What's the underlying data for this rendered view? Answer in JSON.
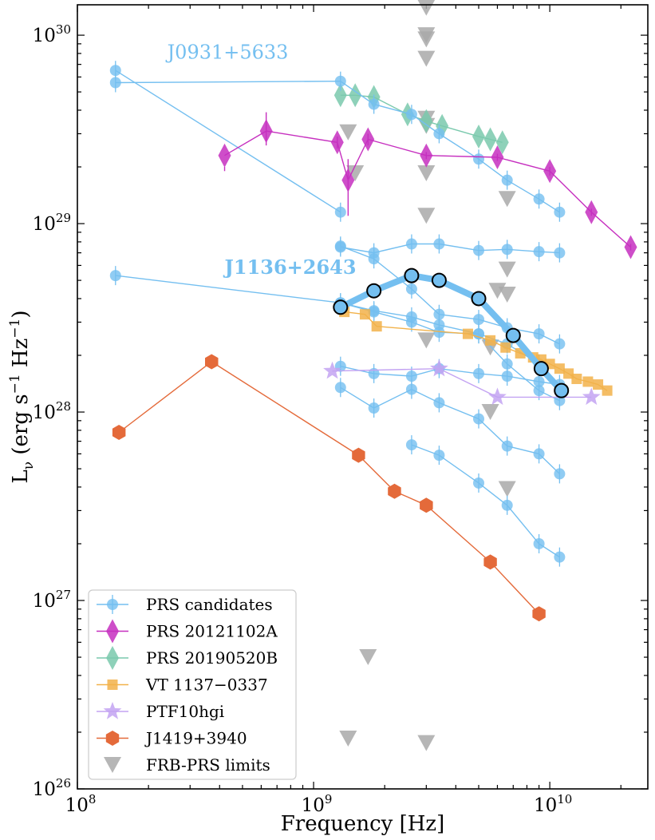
{
  "chart_data": {
    "type": "scatter",
    "xlabel": "Frequency [Hz]",
    "ylabel": "L",
    "ylabel_sub": "ν",
    "ylabel_units": "(erg s",
    "ylabel_units_exp": "−1",
    "ylabel_units_hz": " Hz",
    "ylabel_units_close": ")",
    "xscale": "log",
    "yscale": "log",
    "xlim": [
      100000000.0,
      26000000000.0
    ],
    "ylim": [
      1e+26,
      1.45e+30
    ],
    "x_tick_labels": [
      {
        "base": "10",
        "exp": "8"
      },
      {
        "base": "10",
        "exp": "9"
      },
      {
        "base": "10",
        "exp": "10"
      }
    ],
    "y_tick_labels": [
      {
        "base": "10",
        "exp": "26"
      },
      {
        "base": "10",
        "exp": "27"
      },
      {
        "base": "10",
        "exp": "28"
      },
      {
        "base": "10",
        "exp": "29"
      },
      {
        "base": "10",
        "exp": "30"
      }
    ],
    "legend_position": "lower-left",
    "annotations": [
      {
        "text": "J0931+5633",
        "x": 240000000.0,
        "y": 7.5e+29,
        "bold": false
      },
      {
        "text": "J1136+2643",
        "x": 420000000.0,
        "y": 5.4e+28,
        "bold": true
      }
    ],
    "series": [
      {
        "name": "PRS candidates",
        "color": "#74bff0",
        "marker": "circle",
        "lines": [
          {
            "x": [
              145000000.0,
              1300000000.0
            ],
            "y": [
              6.5e+29,
              1.15e+29
            ]
          },
          {
            "x": [
              145000000.0,
              1300000000.0,
              1800000000.0,
              2600000000.0,
              3400000000.0,
              5000000000.0,
              6600000000.0,
              9000000000.0,
              11000000000.0
            ],
            "y": [
              5.6e+29,
              5.7e+29,
              4.3e+29,
              3.8e+29,
              3e+29,
              2.2e+29,
              1.7e+29,
              1.35e+29,
              1.15e+29
            ]
          },
          {
            "x": [
              1300000000.0,
              1800000000.0,
              2600000000.0,
              3400000000.0,
              5000000000.0,
              6600000000.0,
              9000000000.0,
              11000000000.0
            ],
            "y": [
              7.5e+28,
              7e+28,
              7.8e+28,
              7.8e+28,
              7.2e+28,
              7.3e+28,
              7.1e+28,
              7e+28
            ]
          },
          {
            "x": [
              145000000.0,
              1300000000.0,
              1800000000.0,
              2600000000.0,
              3400000000.0,
              5000000000.0,
              6600000000.0,
              9000000000.0
            ],
            "y": [
              5.3e+28,
              3.8e+28,
              3.45e+28,
              3.2e+28,
              2.9e+28,
              2.6e+28,
              2.3e+28,
              1.8e+28
            ]
          },
          {
            "x": [
              1300000000.0,
              1800000000.0,
              2600000000.0,
              3400000000.0,
              5000000000.0,
              6600000000.0,
              9000000000.0,
              11000000000.0
            ],
            "y": [
              7.6e+28,
              6.5e+28,
              4.5e+28,
              3.3e+28,
              3.1e+28,
              2.8e+28,
              2.6e+28,
              2.3e+28
            ]
          },
          {
            "x": [
              1300000000.0,
              1800000000.0,
              2600000000.0,
              3400000000.0,
              5000000000.0,
              6600000000.0,
              9000000000.0,
              11000000000.0
            ],
            "y": [
              3.8e+28,
              3.4e+28,
              3e+28,
              2.65e+28,
              2.6e+28,
              1.8e+28,
              1.3e+28,
              1.15e+28
            ]
          },
          {
            "x": [
              1300000000.0,
              1800000000.0,
              2600000000.0,
              3400000000.0,
              5000000000.0,
              6600000000.0,
              9000000000.0,
              11000000000.0
            ],
            "y": [
              1.75e+28,
              1.6e+28,
              1.55e+28,
              1.7e+28,
              1.6e+28,
              1.55e+28,
              1.45e+28,
              1.4e+28
            ]
          },
          {
            "x": [
              1300000000.0,
              1800000000.0,
              2600000000.0,
              3400000000.0,
              5000000000.0,
              6600000000.0,
              9000000000.0,
              11000000000.0
            ],
            "y": [
              1.35e+28,
              1.05e+28,
              1.32e+28,
              1.12e+28,
              9.2e+27,
              6.6e+27,
              6e+27,
              4.7e+27
            ]
          },
          {
            "x": [
              2600000000.0,
              3400000000.0,
              5000000000.0,
              6600000000.0,
              9000000000.0,
              11000000000.0
            ],
            "y": [
              6.7e+27,
              5.9e+27,
              4.2e+27,
              3.2e+27,
              2e+27,
              1.7e+27
            ]
          }
        ]
      },
      {
        "name": "J1136+2643",
        "color": "#74bff0",
        "marker": "open-circle",
        "thick": true,
        "x": [
          1300000000.0,
          1800000000.0,
          2600000000.0,
          3400000000.0,
          5000000000.0,
          7000000000.0,
          9200000000.0,
          11200000000.0
        ],
        "y": [
          3.6e+28,
          4.4e+28,
          5.3e+28,
          5e+28,
          4e+28,
          2.55e+28,
          1.7e+28,
          1.3e+28
        ]
      },
      {
        "name": "PRS 20121102A",
        "color": "#c62fbf",
        "marker": "diamond",
        "x": [
          420000000.0,
          630000000.0,
          1260000000.0,
          1400000000.0,
          1700000000.0,
          3000000000.0,
          6000000000.0,
          10000000000.0,
          15000000000.0,
          22000000000.0
        ],
        "y": [
          2.3e+29,
          3.1e+29,
          2.7e+29,
          1.7e+29,
          2.8e+29,
          2.3e+29,
          2.25e+29,
          1.9e+29,
          1.15e+29,
          7.5e+28
        ],
        "yerr_hi": [
          2e+29,
          3.9e+29,
          2.9e+29,
          2.2e+29,
          3e+29,
          2.4e+29,
          2.35e+29,
          2e+29,
          1.2e+29,
          7.8e+28
        ],
        "yerr_lo": [
          1.9e+29,
          2.6e+29,
          2.5e+29,
          1.1e+29,
          2.6e+29,
          2.2e+29,
          2.15e+29,
          1.8e+29,
          1.1e+29,
          7.2e+28
        ]
      },
      {
        "name": "PRS 20190520B",
        "color": "#7ac9ad",
        "marker": "diamond",
        "x": [
          1300000000.0,
          1500000000.0,
          1800000000.0,
          2500000000.0,
          3000000000.0,
          3500000000.0,
          5000000000.0,
          5600000000.0,
          6300000000.0
        ],
        "y": [
          4.8e+29,
          4.8e+29,
          4.7e+29,
          3.8e+29,
          3.5e+29,
          3.3e+29,
          2.9e+29,
          2.8e+29,
          2.7e+29
        ]
      },
      {
        "name": "VT 1137−0337",
        "color": "#f2b24a",
        "marker": "square",
        "x": [
          1350000000.0,
          1650000000.0,
          1850000000.0,
          4500000000.0,
          5600000000.0,
          6500000000.0,
          7500000000.0,
          8500000000.0,
          9200000000.0,
          10000000000.0,
          11000000000.0,
          12000000000.0,
          13000000000.0,
          14500000000.0,
          16000000000.0,
          17500000000.0
        ],
        "y": [
          3.4e+28,
          3.3e+28,
          2.85e+28,
          2.6e+28,
          2.4e+28,
          2.2e+28,
          2.05e+28,
          1.95e+28,
          1.9e+28,
          1.8e+28,
          1.7e+28,
          1.6e+28,
          1.5e+28,
          1.45e+28,
          1.4e+28,
          1.3e+28
        ]
      },
      {
        "name": "PTF10hgi",
        "color": "#c3a3f2",
        "marker": "star",
        "x": [
          1200000000.0,
          3400000000.0,
          6000000000.0,
          15000000000.0
        ],
        "y": [
          1.65e+28,
          1.7e+28,
          1.2e+28,
          1.2e+28
        ]
      },
      {
        "name": "J1419+3940",
        "color": "#e46a3a",
        "marker": "hexagon",
        "x": [
          150000000.0,
          370000000.0,
          1550000000.0,
          2200000000.0,
          3000000000.0,
          5600000000.0,
          9000000000.0
        ],
        "y": [
          7.8e+27,
          1.85e+28,
          5.9e+27,
          3.8e+27,
          3.2e+27,
          1.6e+27,
          8.5e+26
        ]
      },
      {
        "name": "FRB-PRS limits",
        "color": "#a9a9a9",
        "marker": "triangle-down",
        "x": [
          3000000000.0,
          3000000000.0,
          3000000000.0,
          3000000000.0,
          1400000000.0,
          1500000000.0,
          3000000000.0,
          3000000000.0,
          3000000000.0,
          6600000000.0,
          3000000000.0,
          6600000000.0,
          6000000000.0,
          6600000000.0,
          3000000000.0,
          5600000000.0,
          5600000000.0,
          6600000000.0,
          1700000000.0,
          1400000000.0,
          3000000000.0
        ],
        "y": [
          1.4e+30,
          1e+30,
          9.5e+29,
          7.5e+29,
          3.05e+29,
          1.85e+29,
          3.6e+29,
          3.3e+29,
          1.85e+29,
          1.35e+29,
          1.1e+29,
          5.7e+28,
          4.4e+28,
          4.2e+28,
          2.4e+28,
          2.2e+28,
          1e+28,
          3.9e+27,
          5e+26,
          1.85e+26,
          1.75e+26
        ]
      }
    ]
  }
}
